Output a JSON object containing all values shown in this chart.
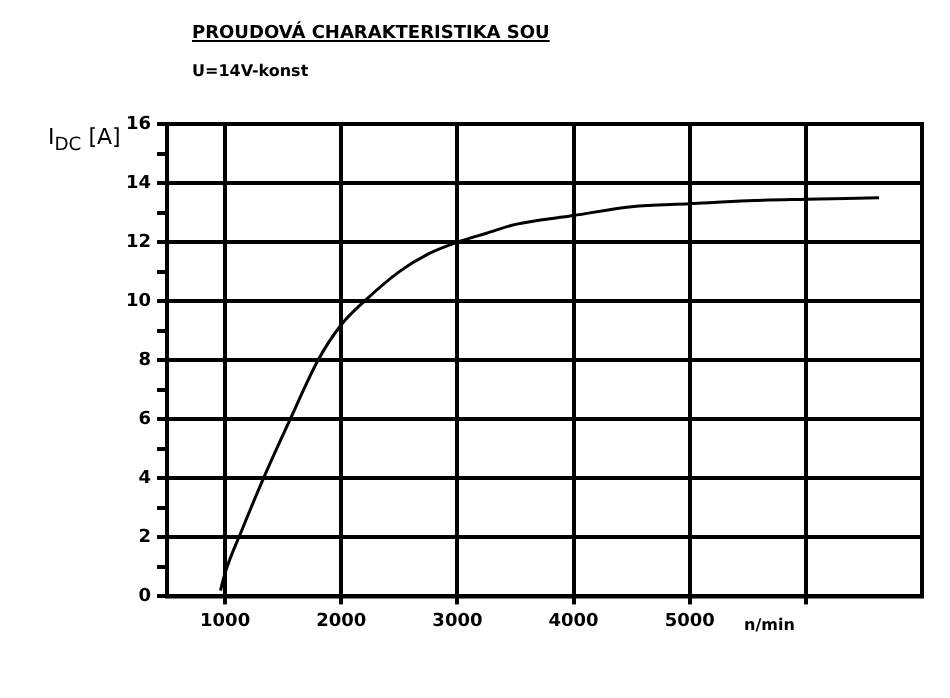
{
  "chart_data": {
    "type": "line",
    "title": "PROUDOVÁ CHARAKTERISTIKA SOU",
    "subtitle": "U=14V-konst",
    "xlabel": "n/min",
    "ylabel": "I$_{DC}$ [A]",
    "x": [
      960,
      1000,
      1150,
      1330,
      1560,
      1800,
      2000,
      2200,
      2500,
      2750,
      3000,
      3250,
      3500,
      4000,
      4500,
      5000,
      5500,
      6000,
      6630
    ],
    "series": [
      {
        "color": "#000000",
        "values": [
          0.2,
          0.8,
          2.3,
          4,
          6,
          8,
          9.2,
          10,
          11,
          11.6,
          12,
          12.3,
          12.6,
          12.9,
          13.2,
          13.3,
          13.4,
          13.45,
          13.5
        ]
      }
    ],
    "xlim": [
      500,
      7000
    ],
    "xticks": [
      1000,
      2000,
      3000,
      4000,
      5000,
      {
        "value": 6000,
        "label": null
      }
    ],
    "ylim": [
      0,
      16
    ],
    "yticks": [
      0,
      {
        "value": 1,
        "label": null
      },
      2,
      {
        "value": 3,
        "label": null
      },
      4,
      {
        "value": 5,
        "label": null
      },
      6,
      {
        "value": 7,
        "label": null
      },
      8,
      {
        "value": 9,
        "label": null
      },
      10,
      {
        "value": 11,
        "label": null
      },
      12,
      {
        "value": 13,
        "label": null
      },
      14,
      {
        "value": 15,
        "label": null
      },
      16
    ],
    "grid": true,
    "legend": false,
    "marker": "none",
    "line_style": "solid"
  }
}
